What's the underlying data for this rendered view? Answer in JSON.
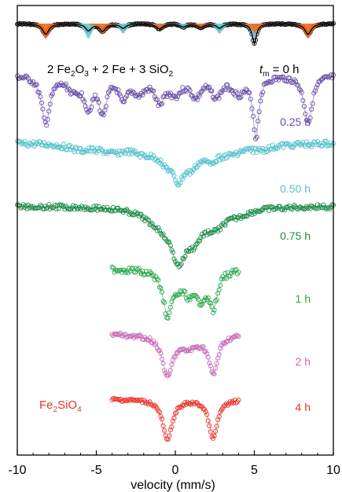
{
  "chart_data": {
    "type": "scatter",
    "title": "",
    "xlabel": "velocity (mm/s)",
    "ylabel": "",
    "xlim": [
      -10,
      10
    ],
    "x_ticks": [
      "-10",
      "-5",
      "0",
      "5",
      "10"
    ],
    "x_tick_values": [
      -10,
      -5,
      0,
      5,
      10
    ],
    "grid": false,
    "equation": {
      "prefix": "2 Fe",
      "sub1": "2",
      "mid1": "O",
      "sub2": "3",
      "rest": " + 2 Fe + 3 SiO",
      "sub3": "2"
    },
    "product_label": {
      "main": "Fe",
      "sub1": "2",
      "mid": "SiO",
      "sub2": "4"
    },
    "tm_label": {
      "italic": "t",
      "sub": "m",
      "rest": " = 0 h"
    },
    "fit_components": [
      {
        "name": "sextet-1",
        "color": "#ef6a1e",
        "lines": [
          -8.2,
          -4.6,
          -1.0,
          1.6,
          5.1,
          8.4
        ],
        "intensities": [
          3,
          2,
          1,
          1,
          2,
          3
        ],
        "width": 0.28
      },
      {
        "name": "sextet-2",
        "color": "#6fcbd6",
        "lines": [
          -5.5,
          -3.3,
          -1.0,
          0.5,
          2.8,
          5.0
        ],
        "intensities": [
          3,
          2,
          1,
          1,
          2,
          3
        ],
        "width": 0.26
      }
    ],
    "series": [
      {
        "name": "0 h",
        "label": "",
        "color": "#111111",
        "xrange": [
          -10,
          10
        ],
        "baseline": 0.0,
        "depth": 1.0,
        "noise": 0.012,
        "peaks": [
          [
            -8.2,
            0.85,
            0.24
          ],
          [
            -5.5,
            0.55,
            0.22
          ],
          [
            -4.6,
            0.6,
            0.22
          ],
          [
            -3.3,
            0.35,
            0.22
          ],
          [
            -1.0,
            0.4,
            0.24
          ],
          [
            0.5,
            0.25,
            0.22
          ],
          [
            1.6,
            0.3,
            0.22
          ],
          [
            2.8,
            0.35,
            0.22
          ],
          [
            5.0,
            1.6,
            0.16
          ],
          [
            8.4,
            0.85,
            0.24
          ]
        ]
      },
      {
        "name": "0.25 h",
        "label": "0.25 h",
        "color": "#6a4faa",
        "xrange": [
          -10,
          10
        ],
        "baseline": 1.0,
        "depth": 1.0,
        "noise": 0.015,
        "peaks": [
          [
            -8.2,
            0.75,
            0.32
          ],
          [
            -6.4,
            0.22,
            0.5
          ],
          [
            -5.5,
            0.45,
            0.3
          ],
          [
            -4.6,
            0.55,
            0.3
          ],
          [
            -3.3,
            0.35,
            0.3
          ],
          [
            -2.3,
            0.25,
            0.5
          ],
          [
            -1.0,
            0.38,
            0.35
          ],
          [
            0.0,
            0.25,
            0.5
          ],
          [
            1.3,
            0.3,
            0.4
          ],
          [
            2.6,
            0.3,
            0.4
          ],
          [
            4.0,
            0.25,
            0.5
          ],
          [
            5.1,
            0.95,
            0.22
          ],
          [
            8.4,
            0.75,
            0.32
          ]
        ]
      },
      {
        "name": "0.50 h",
        "label": "0.50 h",
        "color": "#55c2cc",
        "xrange": [
          -10,
          10
        ],
        "baseline": 2.0,
        "depth": 1.0,
        "noise": 0.02,
        "peaks": [
          [
            -6.0,
            0.12,
            0.9
          ],
          [
            -4.0,
            0.15,
            0.9
          ],
          [
            -2.0,
            0.15,
            0.9
          ],
          [
            -0.5,
            0.3,
            0.7
          ],
          [
            0.2,
            0.55,
            0.4
          ],
          [
            1.0,
            0.35,
            0.5
          ],
          [
            2.2,
            0.25,
            0.7
          ],
          [
            3.5,
            0.15,
            0.9
          ],
          [
            5.5,
            0.1,
            0.9
          ]
        ]
      },
      {
        "name": "0.75 h",
        "label": "0.75 h",
        "color": "#1e8b47",
        "xrange": [
          -10,
          10
        ],
        "baseline": 3.0,
        "depth": 1.0,
        "noise": 0.015,
        "peaks": [
          [
            -1.0,
            0.25,
            1.2
          ],
          [
            0.2,
            0.85,
            0.6
          ],
          [
            1.2,
            0.4,
            0.6
          ],
          [
            2.5,
            0.3,
            0.8
          ],
          [
            4.0,
            0.1,
            1.0
          ]
        ]
      },
      {
        "name": "1 h",
        "label": "1 h",
        "color": "#2aa84a",
        "xrange": [
          -4,
          4
        ],
        "baseline": 4.0,
        "depth": 1.0,
        "noise": 0.02,
        "peaks": [
          [
            -0.5,
            0.8,
            0.35
          ],
          [
            0.2,
            0.2,
            0.5
          ],
          [
            0.9,
            0.35,
            0.4
          ],
          [
            1.6,
            0.45,
            0.4
          ],
          [
            2.4,
            0.7,
            0.3
          ]
        ]
      },
      {
        "name": "2 h",
        "label": "2 h",
        "color": "#c56ab8",
        "xrange": [
          -4,
          4
        ],
        "baseline": 5.0,
        "depth": 1.0,
        "noise": 0.015,
        "peaks": [
          [
            -0.5,
            0.85,
            0.38
          ],
          [
            0.8,
            0.25,
            0.8
          ],
          [
            2.4,
            0.8,
            0.34
          ]
        ]
      },
      {
        "name": "4 h",
        "label": "4 h",
        "color": "#e8342a",
        "xrange": [
          -4,
          4
        ],
        "baseline": 6.0,
        "depth": 1.0,
        "noise": 0.012,
        "peaks": [
          [
            -0.5,
            0.9,
            0.35
          ],
          [
            2.4,
            0.85,
            0.32
          ]
        ]
      }
    ]
  }
}
